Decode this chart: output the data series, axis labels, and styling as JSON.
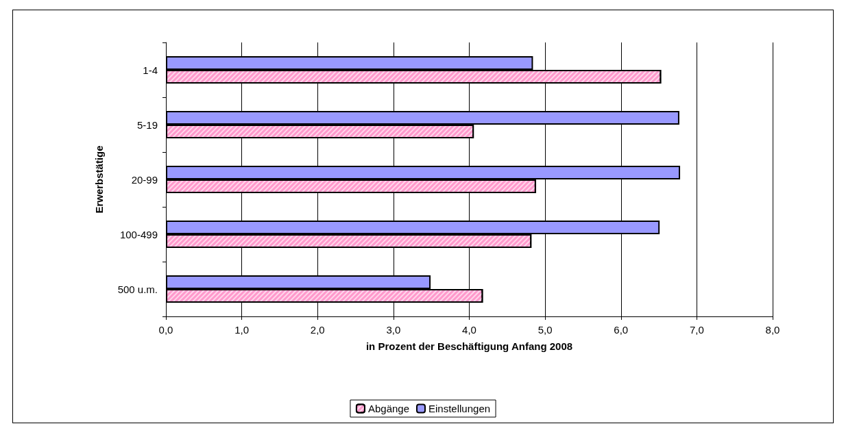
{
  "chart_data": {
    "type": "bar",
    "orientation": "horizontal",
    "categories": [
      "1-4",
      "5-19",
      "20-99",
      "100-499",
      "500 u.m."
    ],
    "series": [
      {
        "name": "Abgänge",
        "color": "#ff99cc",
        "values": [
          6.53,
          4.06,
          4.88,
          4.82,
          4.18
        ]
      },
      {
        "name": "Einstellungen",
        "color": "#9999ff",
        "values": [
          4.84,
          6.77,
          6.78,
          6.51,
          3.49
        ]
      }
    ],
    "xlabel": "in Prozent der Beschäftigung Anfang 2008",
    "ylabel": "Erwerbstätige",
    "xlim": [
      0,
      8
    ],
    "xticks": [
      {
        "value": 0,
        "label": "0,0"
      },
      {
        "value": 1,
        "label": "1,0"
      },
      {
        "value": 2,
        "label": "2,0"
      },
      {
        "value": 3,
        "label": "3,0"
      },
      {
        "value": 4,
        "label": "4,0"
      },
      {
        "value": 5,
        "label": "5,0"
      },
      {
        "value": 6,
        "label": "6,0"
      },
      {
        "value": 7,
        "label": "7,0"
      },
      {
        "value": 8,
        "label": "8,0"
      }
    ],
    "grid": "x",
    "legend": "bottom"
  }
}
